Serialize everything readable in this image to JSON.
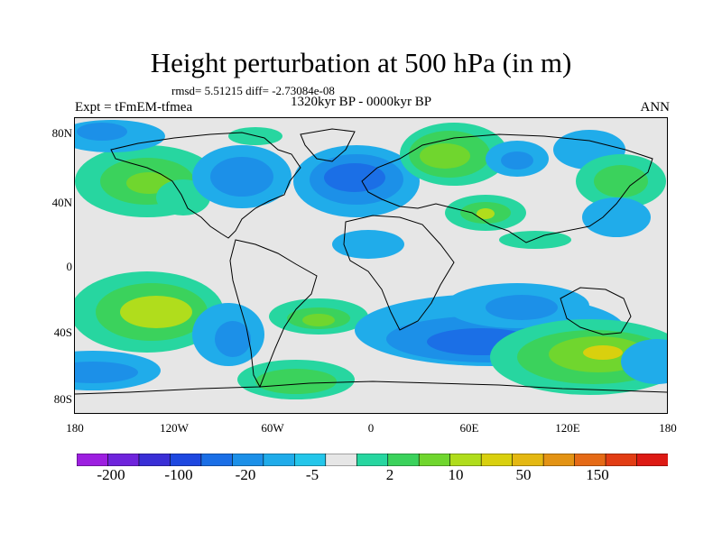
{
  "title": "Height perturbation at 500 hPa (in m)",
  "stats": "rmsd= 5.51215 diff= -2.73084e-08",
  "period": "1320kyr BP - 0000kyr BP",
  "experiment": "Expt = tFmEM-tfmea",
  "season": "ANN",
  "lat_labels": [
    "80N",
    "40N",
    "0",
    "40S",
    "80S"
  ],
  "lon_labels": [
    "180",
    "120W",
    "60W",
    "0",
    "60E",
    "120E",
    "180"
  ],
  "colorbar": {
    "colors": [
      "#9d1fe0",
      "#6f24dc",
      "#3a2fd6",
      "#1e48e0",
      "#1b6fe6",
      "#1c90e8",
      "#20acea",
      "#24c6ea",
      "#e6e6e6",
      "#27d6a0",
      "#3bd25c",
      "#70d62e",
      "#b0dd1c",
      "#d9d00e",
      "#e4b812",
      "#e39314",
      "#e56a16",
      "#e23d14",
      "#dd1a14"
    ],
    "labels": [
      "-200",
      "-100",
      "-20",
      "-5",
      "2",
      "10",
      "50",
      "150"
    ]
  },
  "map": {
    "background": "#e6e6e6",
    "palette": {
      "neg1": "#20acea",
      "neg2": "#1c90e8",
      "neg3": "#1b6fe6",
      "neg4": "#1e48e0",
      "pos1": "#27d6a0",
      "pos2": "#3bd25c",
      "pos3": "#70d62e",
      "pos4": "#b0dd1c",
      "pos5": "#d9d00e"
    }
  }
}
